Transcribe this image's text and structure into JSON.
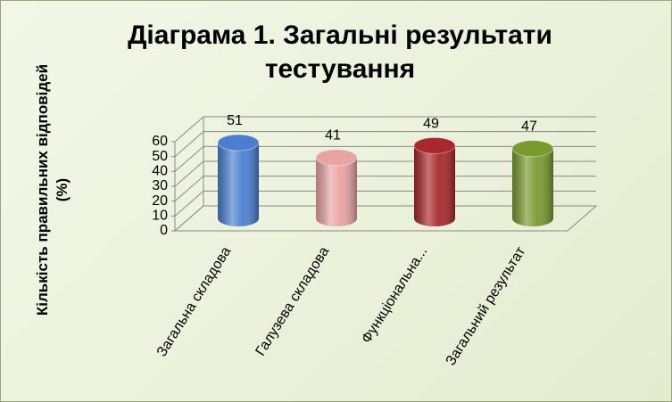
{
  "chart_data": {
    "type": "bar",
    "title": "Діаграма 1. Загальні результати тестування",
    "y_label": "Кількість правильних відповідей (%)",
    "categories": [
      "Загальна складова",
      "Галузева складова",
      "Функціональна...",
      "Загальний результат"
    ],
    "values": [
      51,
      41,
      49,
      47
    ],
    "colors": [
      "#4a7fd0",
      "#e9a3a5",
      "#a8282b",
      "#7a9a2e"
    ],
    "ylim": [
      0,
      60
    ],
    "yticks": [
      0,
      10,
      20,
      30,
      40,
      50,
      60
    ],
    "grid": true
  }
}
